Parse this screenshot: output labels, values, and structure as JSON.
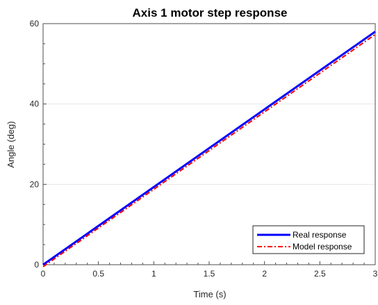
{
  "chart_data": {
    "type": "line",
    "title": "Axis 1 motor step response",
    "xlabel": "Time (s)",
    "ylabel": "Angle (deg)",
    "xlim": [
      0,
      3
    ],
    "ylim": [
      0,
      60
    ],
    "xticks": [
      0,
      0.5,
      1,
      1.5,
      2,
      2.5,
      3
    ],
    "xtick_labels": [
      "0",
      "0.5",
      "1",
      "1.5",
      "2",
      "2.5",
      "3"
    ],
    "yticks": [
      0,
      20,
      40,
      60
    ],
    "ytick_labels": [
      "0",
      "20",
      "40",
      "60"
    ],
    "grid": "horizontal",
    "legend_position": "bottom-right",
    "series": [
      {
        "name": "Real response",
        "color": "#0000ff",
        "style": "solid",
        "x": [
          0,
          3
        ],
        "y": [
          0,
          58
        ]
      },
      {
        "name": "Model response",
        "color": "#ff0000",
        "style": "dash-dot",
        "x": [
          0,
          3
        ],
        "y": [
          -0.5,
          57.3
        ]
      }
    ]
  }
}
